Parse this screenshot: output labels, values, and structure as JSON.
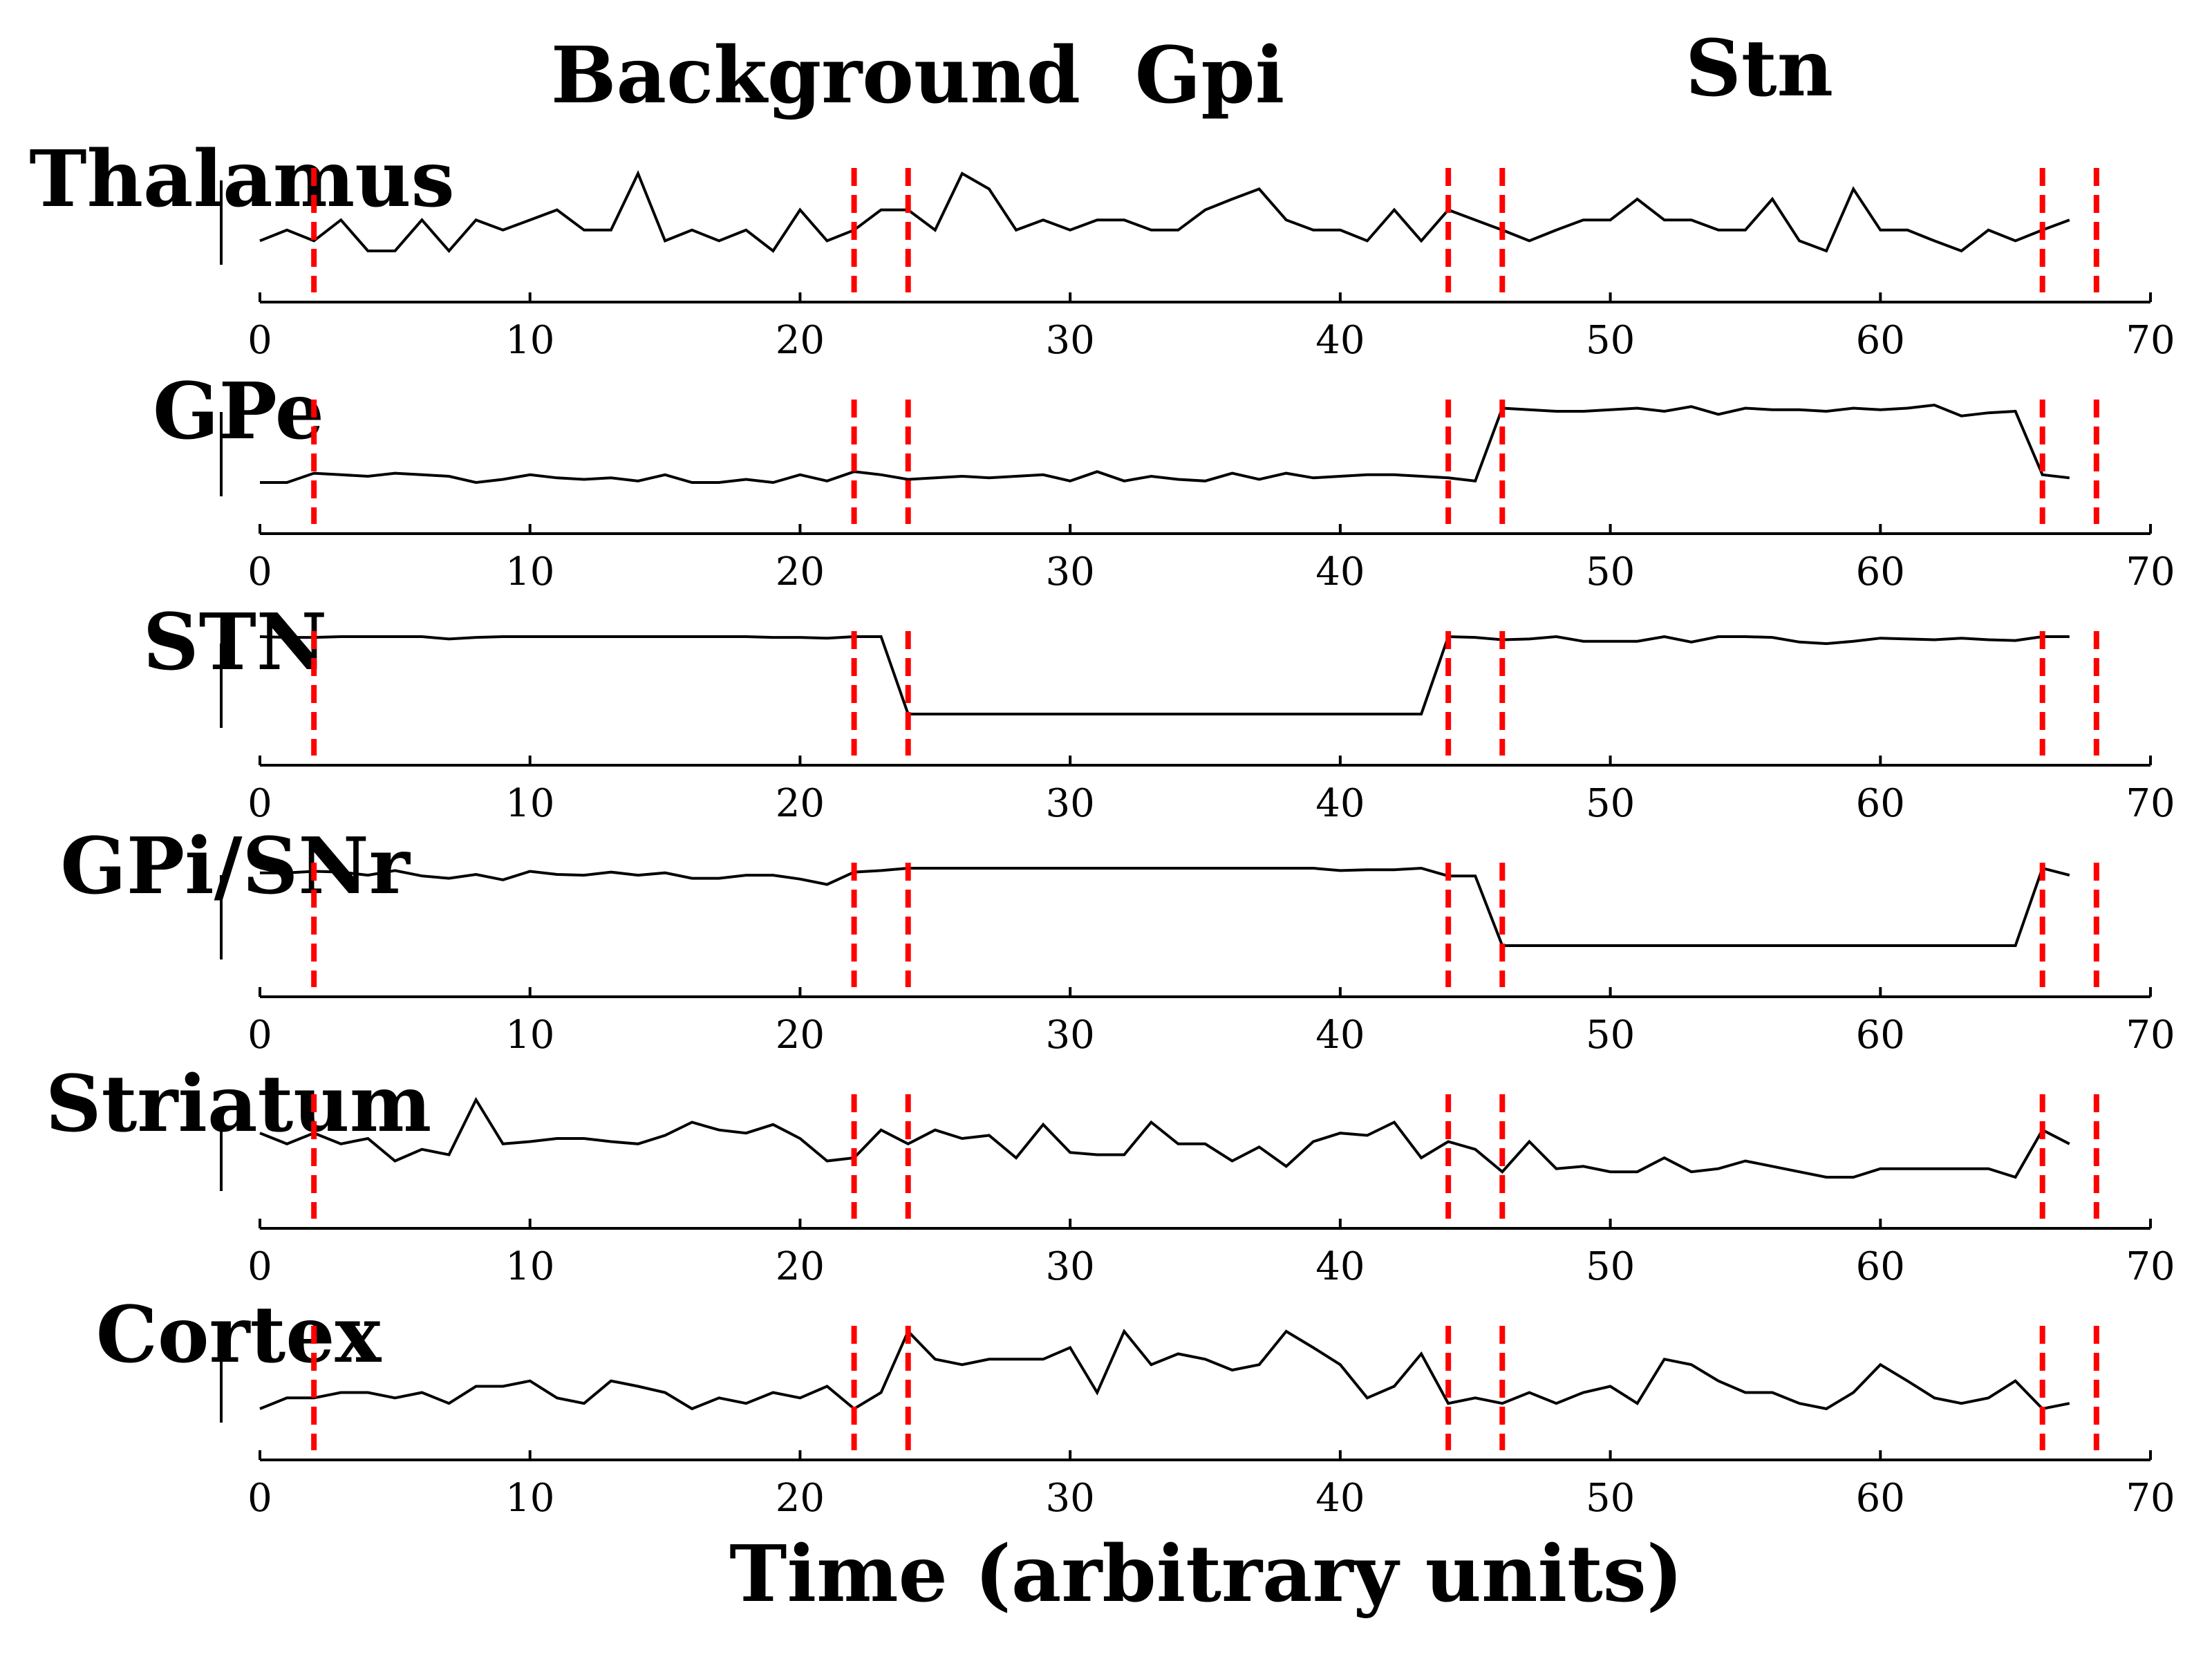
{
  "chart_data": {
    "type": "line",
    "phase_labels": [
      "Background",
      "Gpi",
      "Stn"
    ],
    "xlabel": "Time (arbitrary units)",
    "xlim": [
      0,
      70
    ],
    "xticks": [
      0,
      10,
      20,
      30,
      40,
      50,
      60,
      70
    ],
    "markers_x": [
      2,
      22,
      24,
      44,
      46,
      66,
      68
    ],
    "colors": {
      "line": "#000000",
      "marker": "#ff0000",
      "axis": "#000000"
    },
    "panels": [
      {
        "label": "Thalamus",
        "ylim": [
          0,
          1
        ],
        "series": [
          {
            "x": [
              0,
              1,
              2,
              3,
              4,
              5,
              6,
              7,
              8,
              9,
              10,
              11,
              12,
              13,
              14,
              15,
              16,
              17,
              18,
              19,
              20,
              21,
              22,
              23,
              24,
              25,
              26,
              27,
              28,
              29,
              30,
              31,
              32,
              33,
              34,
              35,
              36,
              37,
              38,
              39,
              40,
              41,
              42,
              43,
              44,
              45,
              46,
              47,
              48,
              49,
              50,
              51,
              52,
              53,
              54,
              55,
              56,
              57,
              58,
              59,
              60,
              61,
              62,
              63,
              64,
              65,
              66,
              67
            ],
            "y": [
              0.13,
              0.27,
              0.13,
              0.4,
              0,
              0,
              0.4,
              0,
              0.4,
              0.27,
              0.4,
              0.53,
              0.27,
              0.27,
              1,
              0.13,
              0.27,
              0.13,
              0.27,
              0,
              0.53,
              0.13,
              0.27,
              0.53,
              0.53,
              0.27,
              1,
              0.8,
              0.27,
              0.4,
              0.27,
              0.4,
              0.4,
              0.27,
              0.27,
              0.53,
              0.67,
              0.8,
              0.4,
              0.27,
              0.27,
              0.13,
              0.53,
              0.13,
              0.53,
              0.4,
              0.27,
              0.13,
              0.27,
              0.4,
              0.4,
              0.67,
              0.4,
              0.4,
              0.27,
              0.27,
              0.67,
              0.13,
              0,
              0.8,
              0.27,
              0.27,
              0.13,
              0,
              0.27,
              0.13,
              0.27,
              0.4
            ]
          }
        ]
      },
      {
        "label": "GPe",
        "ylim": [
          0,
          1
        ],
        "series": [
          {
            "x": [
              0,
              1,
              2,
              3,
              4,
              5,
              6,
              7,
              8,
              9,
              10,
              11,
              12,
              13,
              14,
              15,
              16,
              17,
              18,
              19,
              20,
              21,
              22,
              23,
              24,
              25,
              26,
              27,
              28,
              29,
              30,
              31,
              32,
              33,
              34,
              35,
              36,
              37,
              38,
              39,
              40,
              41,
              42,
              43,
              44,
              45,
              46,
              47,
              48,
              49,
              50,
              51,
              52,
              53,
              54,
              55,
              56,
              57,
              58,
              59,
              60,
              61,
              62,
              63,
              64,
              65,
              66,
              67
            ],
            "y": [
              0,
              0,
              0.12,
              0.1,
              0.08,
              0.12,
              0.1,
              0.08,
              0,
              0.04,
              0.1,
              0.06,
              0.04,
              0.06,
              0.02,
              0.1,
              0,
              0,
              0.04,
              0,
              0.1,
              0.02,
              0.14,
              0.1,
              0.04,
              0.06,
              0.08,
              0.06,
              0.08,
              0.1,
              0.02,
              0.14,
              0.02,
              0.08,
              0.04,
              0.02,
              0.12,
              0.04,
              0.12,
              0.06,
              0.08,
              0.1,
              0.1,
              0.08,
              0.06,
              0.02,
              0.96,
              0.94,
              0.92,
              0.92,
              0.94,
              0.96,
              0.92,
              0.98,
              0.88,
              0.96,
              0.94,
              0.94,
              0.92,
              0.96,
              0.94,
              0.96,
              1,
              0.86,
              0.9,
              0.92,
              0.1,
              0.06
            ]
          }
        ]
      },
      {
        "label": "STN",
        "ylim": [
          0,
          1
        ],
        "series": [
          {
            "x": [
              0,
              1,
              2,
              3,
              4,
              5,
              6,
              7,
              8,
              9,
              10,
              11,
              12,
              13,
              14,
              15,
              16,
              17,
              18,
              19,
              20,
              21,
              22,
              23,
              24,
              25,
              26,
              27,
              28,
              29,
              30,
              31,
              32,
              33,
              34,
              35,
              36,
              37,
              38,
              39,
              40,
              41,
              42,
              43,
              44,
              45,
              46,
              47,
              48,
              49,
              50,
              51,
              52,
              53,
              54,
              55,
              56,
              57,
              58,
              59,
              60,
              61,
              62,
              63,
              64,
              65,
              66,
              67
            ],
            "y": [
              1,
              0.99,
              0.99,
              1,
              1,
              1,
              1,
              0.97,
              0.99,
              1,
              1,
              1,
              1,
              1,
              1,
              1,
              1,
              1,
              1,
              0.99,
              0.99,
              0.98,
              1,
              1,
              0,
              0,
              0,
              0,
              0,
              0,
              0,
              0,
              0,
              0,
              0,
              0,
              0,
              0,
              0,
              0,
              0,
              0,
              0,
              0,
              1,
              0.99,
              0.96,
              0.97,
              1,
              0.94,
              0.94,
              0.94,
              1,
              0.93,
              1,
              1,
              0.99,
              0.93,
              0.91,
              0.94,
              0.98,
              0.97,
              0.96,
              0.98,
              0.96,
              0.95,
              1,
              1
            ]
          }
        ]
      },
      {
        "label": "GPi/SNr",
        "ylim": [
          0,
          1
        ],
        "series": [
          {
            "x": [
              0,
              1,
              2,
              3,
              4,
              5,
              6,
              7,
              8,
              9,
              10,
              11,
              12,
              13,
              14,
              15,
              16,
              17,
              18,
              19,
              20,
              21,
              22,
              23,
              24,
              25,
              26,
              27,
              28,
              29,
              30,
              31,
              32,
              33,
              34,
              35,
              36,
              37,
              38,
              39,
              40,
              41,
              42,
              43,
              44,
              45,
              46,
              47,
              48,
              49,
              50,
              51,
              52,
              53,
              54,
              55,
              56,
              57,
              58,
              59,
              60,
              61,
              62,
              63,
              64,
              65,
              66,
              67
            ],
            "y": [
              0.94,
              0.94,
              0.96,
              0.95,
              0.91,
              0.97,
              0.9,
              0.87,
              0.92,
              0.85,
              0.96,
              0.92,
              0.91,
              0.95,
              0.91,
              0.94,
              0.87,
              0.87,
              0.91,
              0.91,
              0.86,
              0.79,
              0.95,
              0.97,
              1,
              1,
              1,
              1,
              1,
              1,
              1,
              1,
              1,
              1,
              1,
              1,
              1,
              1,
              1,
              1,
              0.97,
              0.98,
              0.98,
              1,
              0.9,
              0.9,
              0,
              0,
              0,
              0,
              0,
              0,
              0,
              0,
              0,
              0,
              0,
              0,
              0,
              0,
              0,
              0,
              0,
              0,
              0,
              0,
              1,
              0.91
            ]
          }
        ]
      },
      {
        "label": "Striatum",
        "ylim": [
          0,
          1
        ],
        "series": [
          {
            "x": [
              0,
              1,
              2,
              3,
              4,
              5,
              6,
              7,
              8,
              9,
              10,
              11,
              12,
              13,
              14,
              15,
              16,
              17,
              18,
              19,
              20,
              21,
              22,
              23,
              24,
              25,
              26,
              27,
              28,
              29,
              30,
              31,
              32,
              33,
              34,
              35,
              36,
              37,
              38,
              39,
              40,
              41,
              42,
              43,
              44,
              45,
              46,
              47,
              48,
              49,
              50,
              51,
              52,
              53,
              54,
              55,
              56,
              57,
              58,
              59,
              60,
              61,
              62,
              63,
              64,
              65,
              66,
              67
            ],
            "y": [
              0.57,
              0.43,
              0.57,
              0.43,
              0.5,
              0.21,
              0.36,
              0.29,
              1,
              0.43,
              0.46,
              0.5,
              0.5,
              0.46,
              0.43,
              0.54,
              0.71,
              0.61,
              0.57,
              0.68,
              0.5,
              0.21,
              0.25,
              0.61,
              0.43,
              0.61,
              0.5,
              0.54,
              0.25,
              0.68,
              0.32,
              0.29,
              0.29,
              0.71,
              0.43,
              0.43,
              0.21,
              0.39,
              0.14,
              0.46,
              0.57,
              0.54,
              0.71,
              0.25,
              0.46,
              0.36,
              0.07,
              0.46,
              0.11,
              0.14,
              0.07,
              0.07,
              0.25,
              0.07,
              0.11,
              0.21,
              0.14,
              0.07,
              0.0,
              0.0,
              0.11,
              0.11,
              0.11,
              0.11,
              0.11,
              0.0,
              0.61,
              0.43
            ]
          }
        ]
      },
      {
        "label": "Cortex",
        "ylim": [
          0,
          1
        ],
        "series": [
          {
            "x": [
              0,
              1,
              2,
              3,
              4,
              5,
              6,
              7,
              8,
              9,
              10,
              11,
              12,
              13,
              14,
              15,
              16,
              17,
              18,
              19,
              20,
              21,
              22,
              23,
              24,
              25,
              26,
              27,
              28,
              29,
              30,
              31,
              32,
              33,
              34,
              35,
              36,
              37,
              38,
              39,
              40,
              41,
              42,
              43,
              44,
              45,
              46,
              47,
              48,
              49,
              50,
              51,
              52,
              53,
              54,
              55,
              56,
              57,
              58,
              59,
              60,
              61,
              62,
              63,
              64,
              65,
              66,
              67
            ],
            "y": [
              0,
              0.14,
              0.14,
              0.21,
              0.21,
              0.14,
              0.21,
              0.07,
              0.29,
              0.29,
              0.36,
              0.14,
              0.07,
              0.36,
              0.29,
              0.21,
              0,
              0.14,
              0.07,
              0.21,
              0.14,
              0.29,
              0,
              0.21,
              1,
              0.64,
              0.57,
              0.64,
              0.64,
              0.64,
              0.79,
              0.21,
              1,
              0.57,
              0.71,
              0.64,
              0.5,
              0.57,
              1,
              0.79,
              0.57,
              0.14,
              0.29,
              0.71,
              0.07,
              0.14,
              0.07,
              0.21,
              0.07,
              0.21,
              0.29,
              0.07,
              0.64,
              0.57,
              0.36,
              0.21,
              0.21,
              0.07,
              0,
              0.21,
              0.57,
              0.36,
              0.14,
              0.07,
              0.14,
              0.36,
              0,
              0.07
            ]
          }
        ]
      }
    ]
  }
}
